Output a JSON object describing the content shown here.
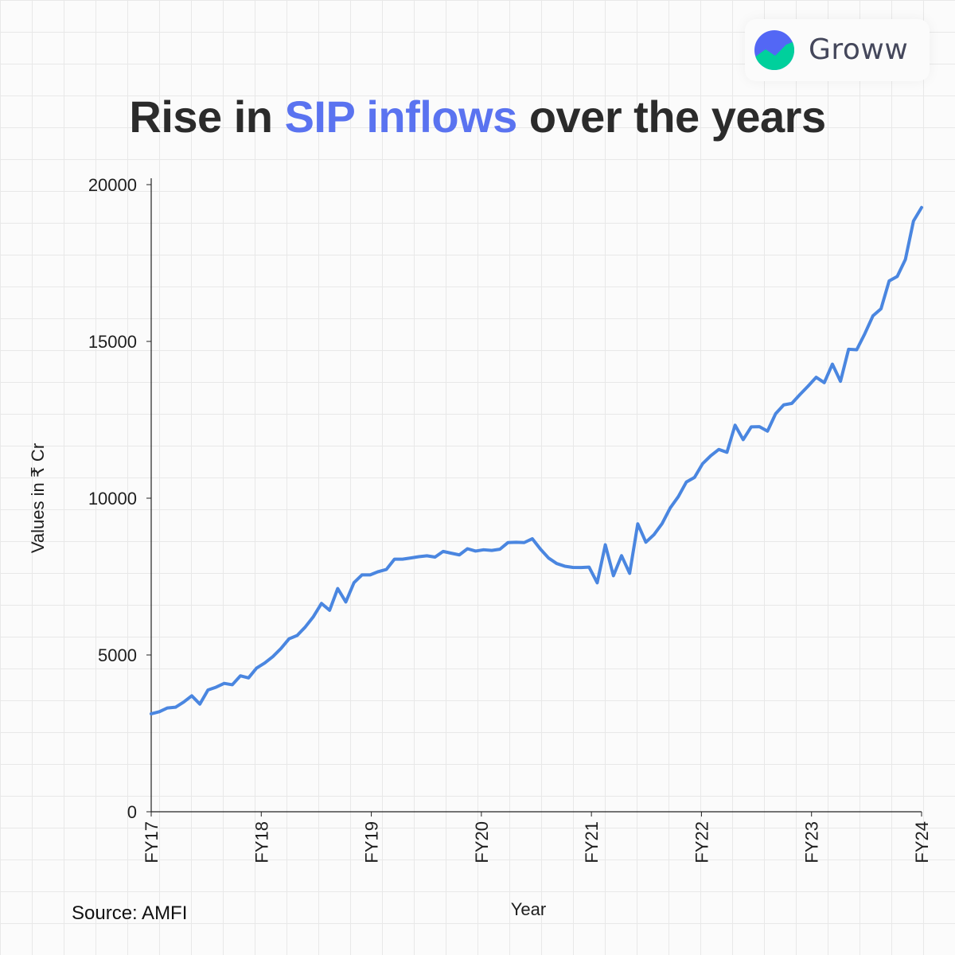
{
  "brand": {
    "name": "Groww",
    "mark_colors": {
      "top": "#5367f5",
      "bottom": "#00d09c"
    }
  },
  "title": {
    "prefix": "Rise in ",
    "highlight": "SIP inflows",
    "suffix": " over the years",
    "highlight_color": "#5a73f0"
  },
  "source": "Source: AMFI",
  "chart_data": {
    "type": "line",
    "title": "Rise in SIP inflows over the years",
    "xlabel": "Year",
    "ylabel": "Values in ₹ Cr",
    "ylim": [
      0,
      20000
    ],
    "yticks": [
      0,
      5000,
      10000,
      15000,
      20000
    ],
    "xticks": [
      "FY17",
      "FY18",
      "FY19",
      "FY20",
      "FY21",
      "FY22",
      "FY23",
      "FY24"
    ],
    "x_range": [
      "Apr 2016",
      "Mar 2024"
    ],
    "grid": true,
    "line_color": "#4a86e0",
    "x": [
      "Apr-16",
      "May-16",
      "Jun-16",
      "Jul-16",
      "Aug-16",
      "Sep-16",
      "Oct-16",
      "Nov-16",
      "Dec-16",
      "Jan-17",
      "Feb-17",
      "Mar-17",
      "Apr-17",
      "May-17",
      "Jun-17",
      "Jul-17",
      "Aug-17",
      "Sep-17",
      "Oct-17",
      "Nov-17",
      "Dec-17",
      "Jan-18",
      "Feb-18",
      "Mar-18",
      "Apr-18",
      "May-18",
      "Jun-18",
      "Jul-18",
      "Aug-18",
      "Sep-18",
      "Oct-18",
      "Nov-18",
      "Dec-18",
      "Jan-19",
      "Feb-19",
      "Mar-19",
      "Apr-19",
      "May-19",
      "Jun-19",
      "Jul-19",
      "Aug-19",
      "Sep-19",
      "Oct-19",
      "Nov-19",
      "Dec-19",
      "Jan-20",
      "Feb-20",
      "Mar-20",
      "Apr-20",
      "May-20",
      "Jun-20",
      "Jul-20",
      "Aug-20",
      "Sep-20",
      "Oct-20",
      "Nov-20",
      "Dec-20",
      "Jan-21",
      "Feb-21",
      "Mar-21",
      "Apr-21",
      "May-21",
      "Jun-21",
      "Jul-21",
      "Aug-21",
      "Sep-21",
      "Oct-21",
      "Nov-21",
      "Dec-21",
      "Jan-22",
      "Feb-22",
      "Mar-22",
      "Apr-22",
      "May-22",
      "Jun-22",
      "Jul-22",
      "Aug-22",
      "Sep-22",
      "Oct-22",
      "Nov-22",
      "Dec-22",
      "Jan-23",
      "Feb-23",
      "Mar-23",
      "Apr-23",
      "May-23",
      "Jun-23",
      "Jul-23",
      "Aug-23",
      "Sep-23",
      "Oct-23",
      "Nov-23",
      "Dec-23",
      "Jan-24",
      "Feb-24",
      "Mar-24"
    ],
    "values": [
      3122,
      3189,
      3310,
      3334,
      3497,
      3698,
      3434,
      3884,
      3973,
      4095,
      4050,
      4335,
      4269,
      4584,
      4744,
      4947,
      5206,
      5516,
      5621,
      5893,
      6222,
      6644,
      6425,
      7119,
      6690,
      7304,
      7554,
      7554,
      7658,
      7727,
      8055,
      8055,
      8094,
      8134,
      8164,
      8122,
      8303,
      8246,
      8192,
      8388,
      8314,
      8355,
      8335,
      8372,
      8586,
      8596,
      8585,
      8706,
      8376,
      8092,
      7917,
      7831,
      7792,
      7788,
      7800,
      7302,
      8513,
      7528,
      8167,
      7602,
      9182,
      8596,
      8837,
      9189,
      9688,
      10050,
      10518,
      10664,
      11101,
      11353,
      11555,
      11464,
      12328,
      11867,
      12276,
      12282,
      12139,
      12693,
      12976,
      13023,
      13306,
      13573,
      13856,
      13686,
      14276,
      13728,
      14749,
      14734,
      15245,
      15814,
      16042,
      16928,
      17073,
      17610,
      18838,
      19271
    ]
  }
}
